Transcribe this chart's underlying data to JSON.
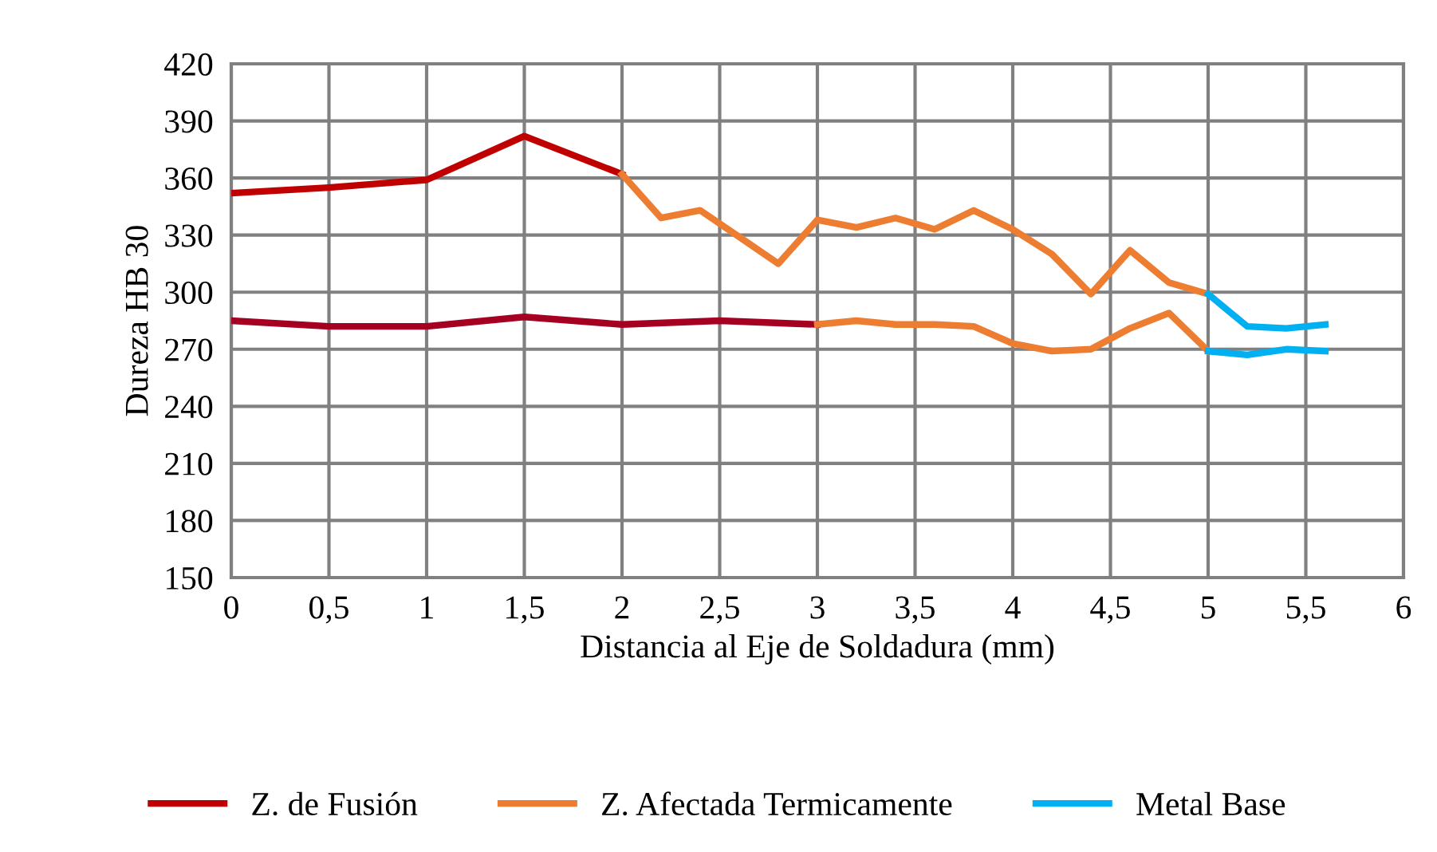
{
  "chart_data": {
    "type": "line",
    "xlabel": "Distancia al Eje de Soldadura (mm)",
    "ylabel": "Dureza HB 30",
    "xlim": [
      0,
      6
    ],
    "xticks": [
      0,
      {
        "value": 0.5,
        "label": "0,5"
      },
      1,
      {
        "value": 1.5,
        "label": "1,5"
      },
      2,
      {
        "value": 2.5,
        "label": "2,5"
      },
      3,
      {
        "value": 3.5,
        "label": "3,5"
      },
      4,
      {
        "value": 4.5,
        "label": "4,5"
      },
      5,
      {
        "value": 5.5,
        "label": "5,5"
      },
      6
    ],
    "ylim": [
      150,
      420
    ],
    "yticks": [
      150,
      180,
      210,
      240,
      270,
      300,
      330,
      360,
      390,
      420
    ],
    "grid": true,
    "legend": "bottom",
    "marker": "none",
    "line_style": "solid",
    "series": [
      {
        "name": "Z. de Fusión",
        "color": "#c00000",
        "x": [
          0,
          0.5,
          1,
          1.5,
          2
        ],
        "values": [
          352,
          355,
          359,
          382,
          362
        ]
      },
      {
        "name": "Z. Afectada Termicamente",
        "color": "#ed7d31",
        "x": [
          2,
          2.2,
          2.4,
          2.6,
          2.8,
          3,
          3.2,
          3.4,
          3.6,
          3.8,
          4,
          4.2,
          4.4,
          4.6,
          4.8,
          5
        ],
        "values": [
          362,
          339,
          343,
          329,
          315,
          338,
          334,
          339,
          333,
          343,
          333,
          320,
          299,
          322,
          305,
          299
        ]
      },
      {
        "name": "Metal Base",
        "color": "#00b0f0",
        "x": [
          5,
          5.2,
          5.4,
          5.6
        ],
        "values": [
          299,
          282,
          281,
          283
        ]
      },
      {
        "color": "#a50021",
        "x": [
          0,
          0.5,
          1,
          1.5,
          2,
          2.5,
          3
        ],
        "values": [
          285,
          282,
          282,
          287,
          283,
          285,
          283
        ]
      },
      {
        "color": "#ed7d31",
        "x": [
          3,
          3.2,
          3.4,
          3.6,
          3.8,
          4,
          4.2,
          4.4,
          4.6,
          4.8,
          5
        ],
        "values": [
          283,
          285,
          283,
          283,
          282,
          273,
          269,
          270,
          281,
          289,
          269
        ]
      },
      {
        "color": "#00b0f0",
        "x": [
          5,
          5.2,
          5.4,
          5.6
        ],
        "values": [
          269,
          267,
          270,
          269
        ]
      }
    ]
  }
}
